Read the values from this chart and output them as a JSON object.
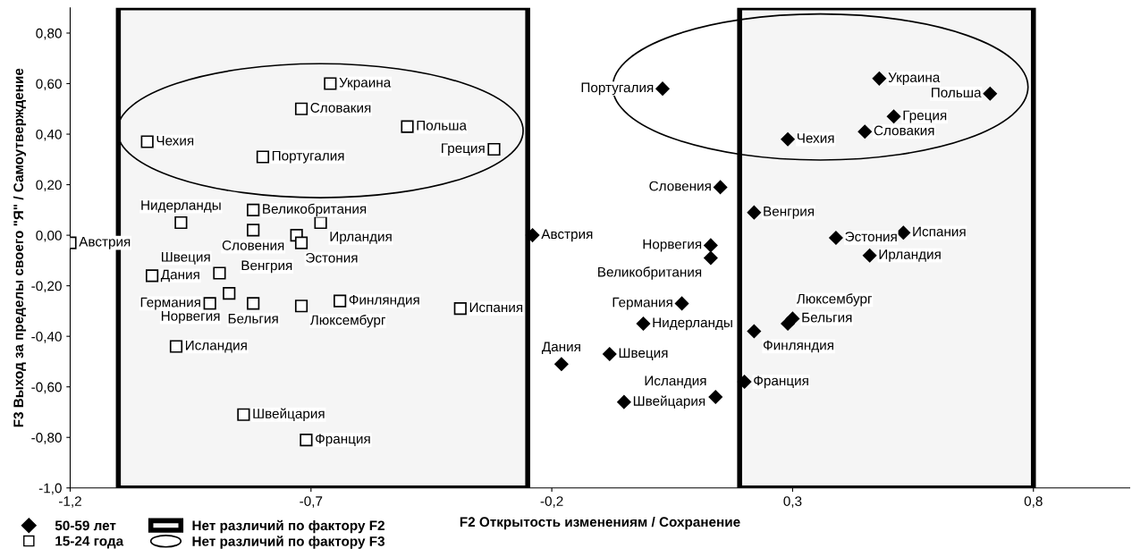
{
  "chart_data": {
    "type": "scatter",
    "xlabel": "F2 Открытость изменениям / Сохранение",
    "ylabel": "F3 Выход за пределы своего \"Я\" / Самоутверждение",
    "xlim": [
      -1.2,
      1.0
    ],
    "ylim": [
      -1.0,
      0.9
    ],
    "xticks": [
      {
        "value": -1.2,
        "label": "-1,2"
      },
      {
        "value": -0.7,
        "label": "-0,7"
      },
      {
        "value": -0.2,
        "label": "-0,2"
      },
      {
        "value": 0.3,
        "label": "0,3"
      },
      {
        "value": 0.8,
        "label": "0,8"
      }
    ],
    "yticks": [
      {
        "value": -1.0,
        "label": "-1,0"
      },
      {
        "value": -0.8,
        "label": "-0,80"
      },
      {
        "value": -0.6,
        "label": "-0,60"
      },
      {
        "value": -0.4,
        "label": "-0,40"
      },
      {
        "value": -0.2,
        "label": "-0,20"
      },
      {
        "value": 0.0,
        "label": "0,00"
      },
      {
        "value": 0.2,
        "label": "0,20"
      },
      {
        "value": 0.4,
        "label": "0,40"
      },
      {
        "value": 0.6,
        "label": "0,60"
      },
      {
        "value": 0.8,
        "label": "0,80"
      }
    ],
    "grid": false,
    "legend": "bottom left",
    "series": [
      {
        "name": "50-59 лет",
        "color": "#000000",
        "marker": "diamond",
        "x": [
          0.03,
          0.48,
          0.71,
          0.51,
          0.45,
          0.29,
          0.15,
          0.22,
          0.39,
          0.53,
          0.46,
          -0.24,
          0.13,
          0.13,
          0.07,
          -0.01,
          -0.18,
          -0.08,
          -0.05,
          0.14,
          0.2,
          0.22,
          0.3,
          0.29
        ],
        "values": [
          0.58,
          0.62,
          0.56,
          0.47,
          0.41,
          0.38,
          0.19,
          0.09,
          -0.01,
          0.01,
          -0.08,
          0.0,
          -0.04,
          -0.09,
          -0.27,
          -0.35,
          -0.51,
          -0.47,
          -0.66,
          -0.64,
          -0.58,
          -0.38,
          -0.33,
          -0.35
        ],
        "value_labels": [
          "Португалия",
          "Украина",
          "Польша",
          "Греция",
          "Словакия",
          "Чехия",
          "Словения",
          "Венгрия",
          "Эстония",
          "Испания",
          "Ирландия",
          "Австрия",
          "Норвегия",
          "Великобритания",
          "Германия",
          "Нидерланды",
          "Дания",
          "Швеция",
          "Швейцария",
          "Исландия",
          "Франция",
          "Финляндия",
          "Бельгия",
          "Люксембург"
        ]
      },
      {
        "name": "15-24 года",
        "color": "#000000",
        "marker": "square",
        "x": [
          -0.66,
          -0.72,
          -0.5,
          -1.04,
          -0.8,
          -0.32,
          -0.97,
          -0.82,
          -0.68,
          -0.82,
          -0.73,
          -0.72,
          -1.2,
          -1.03,
          -0.89,
          -0.87,
          -0.91,
          -0.82,
          -0.72,
          -0.64,
          -0.39,
          -0.98,
          -0.84,
          -0.71
        ],
        "values": [
          0.6,
          0.5,
          0.43,
          0.37,
          0.31,
          0.34,
          0.05,
          0.1,
          0.05,
          0.02,
          0.0,
          -0.03,
          -0.03,
          -0.16,
          -0.15,
          -0.23,
          -0.27,
          -0.27,
          -0.28,
          -0.26,
          -0.29,
          -0.44,
          -0.71,
          -0.81
        ],
        "value_labels": [
          "Украина",
          "Словакия",
          "Польша",
          "Чехия",
          "Португалия",
          "Греция",
          "Нидерланды",
          "Великобритания",
          "Ирландия",
          "Словения",
          "Эстония",
          "Венгрия",
          "Австрия",
          "Дания",
          "Швеция",
          "Норвегия",
          "Германия",
          "Бельгия",
          "Люксембург",
          "Финляндия",
          "Испания",
          "Исландия",
          "Швейцария",
          "Франция"
        ]
      }
    ],
    "bands": [
      {
        "axis": "x",
        "from": -1.1,
        "to": -0.25,
        "color": "#000000",
        "label": "Нет различий по фактору F2"
      },
      {
        "axis": "x",
        "from": 0.19,
        "to": 0.8,
        "color": "#000000"
      }
    ],
    "annotations": [
      "Нет различий по фактору F3"
    ]
  }
}
